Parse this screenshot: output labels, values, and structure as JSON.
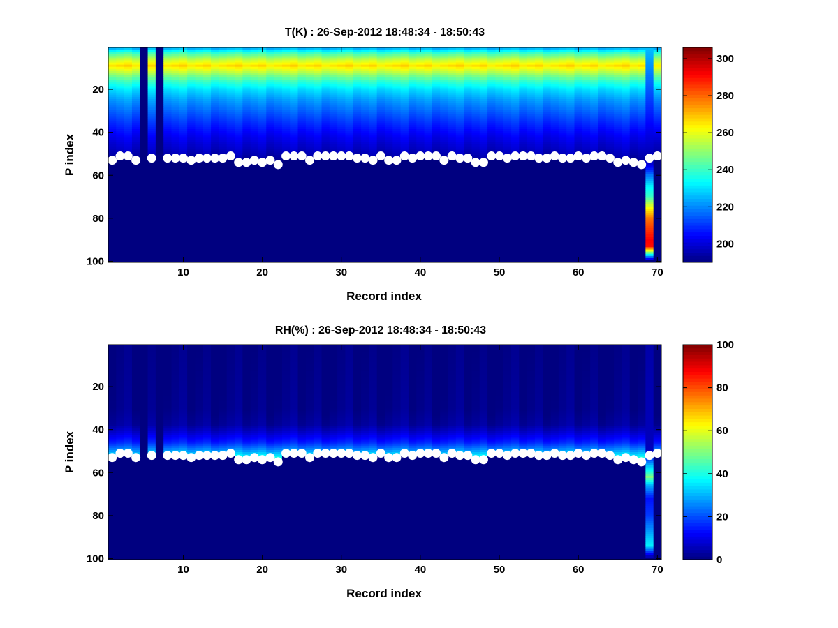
{
  "chart_data": [
    {
      "type": "heatmap",
      "title": "T(K) : 26-Sep-2012 18:48:34 - 18:50:43",
      "xlabel": "Record index",
      "ylabel": "P index",
      "xlim": [
        0.5,
        70.5
      ],
      "ylim": [
        0.5,
        100.5
      ],
      "y_reversed": true,
      "xticks": [
        10,
        20,
        30,
        40,
        50,
        60,
        70
      ],
      "yticks": [
        20,
        40,
        60,
        80,
        100
      ],
      "colormap": "jet",
      "clim": [
        190,
        306
      ],
      "colorbar_ticks": [
        200,
        220,
        240,
        260,
        280,
        300
      ],
      "field": {
        "description": "temperature in K versus P index",
        "profile_p": [
          1,
          3,
          6,
          9,
          12,
          16,
          20,
          25,
          30,
          35,
          40,
          45,
          50,
          53
        ],
        "profile_values": [
          226,
          240,
          255,
          266,
          255,
          240,
          230,
          222,
          216,
          210,
          205,
          200,
          196,
          193
        ],
        "below_marker_value": 190,
        "empty_columns": [
          5,
          7
        ],
        "empty_value": 190,
        "anomaly_column": 69,
        "anomaly_profile_p": [
          1,
          50,
          55,
          60,
          65,
          70,
          75,
          80,
          85,
          90,
          93,
          100
        ],
        "anomaly_profile_values": [
          226,
          196,
          200,
          218,
          232,
          240,
          262,
          278,
          285,
          292,
          290,
          190
        ]
      },
      "markers": {
        "x": [
          1,
          2,
          3,
          4,
          6,
          8,
          9,
          10,
          11,
          12,
          13,
          14,
          15,
          16,
          17,
          18,
          19,
          20,
          21,
          22,
          23,
          24,
          25,
          26,
          27,
          28,
          29,
          30,
          31,
          32,
          33,
          34,
          35,
          36,
          37,
          38,
          39,
          40,
          41,
          42,
          43,
          44,
          45,
          46,
          47,
          48,
          49,
          50,
          51,
          52,
          53,
          54,
          55,
          56,
          57,
          58,
          59,
          60,
          61,
          62,
          63,
          64,
          65,
          66,
          67,
          68,
          69,
          70
        ],
        "y": [
          53,
          51,
          51,
          53,
          52,
          52,
          52,
          52,
          53,
          52,
          52,
          52,
          52,
          51,
          54,
          54,
          53,
          54,
          53,
          55,
          51,
          51,
          51,
          53,
          51,
          51,
          51,
          51,
          51,
          52,
          52,
          53,
          51,
          53,
          53,
          51,
          52,
          51,
          51,
          51,
          53,
          51,
          52,
          52,
          54,
          54,
          51,
          51,
          52,
          51,
          51,
          51,
          52,
          52,
          51,
          52,
          52,
          51,
          52,
          51,
          51,
          52,
          54,
          53,
          54,
          55,
          52,
          51
        ]
      }
    },
    {
      "type": "heatmap",
      "title": "RH(%) : 26-Sep-2012 18:48:34 - 18:50:43",
      "xlabel": "Record index",
      "ylabel": "P index",
      "xlim": [
        0.5,
        70.5
      ],
      "ylim": [
        0.5,
        100.5
      ],
      "y_reversed": true,
      "xticks": [
        10,
        20,
        30,
        40,
        50,
        60,
        70
      ],
      "yticks": [
        20,
        40,
        60,
        80,
        100
      ],
      "colormap": "jet",
      "clim": [
        0,
        100
      ],
      "colorbar_ticks": [
        0,
        20,
        40,
        60,
        80,
        100
      ],
      "field": {
        "description": "relative humidity in % versus P index",
        "profile_p": [
          1,
          30,
          38,
          42,
          46,
          49,
          52,
          54
        ],
        "profile_values": [
          0,
          1,
          3,
          9,
          16,
          25,
          35,
          45
        ],
        "below_marker_value": 0,
        "empty_columns": [
          5,
          7
        ],
        "empty_value": 0,
        "anomaly_column": 69,
        "anomaly_profile_p": [
          1,
          50,
          56,
          60,
          62,
          66,
          72,
          80,
          86,
          92,
          94,
          100
        ],
        "anomaly_profile_values": [
          4,
          6,
          28,
          42,
          50,
          30,
          14,
          18,
          26,
          34,
          36,
          0
        ]
      },
      "markers": {
        "x": [
          1,
          2,
          3,
          4,
          6,
          8,
          9,
          10,
          11,
          12,
          13,
          14,
          15,
          16,
          17,
          18,
          19,
          20,
          21,
          22,
          23,
          24,
          25,
          26,
          27,
          28,
          29,
          30,
          31,
          32,
          33,
          34,
          35,
          36,
          37,
          38,
          39,
          40,
          41,
          42,
          43,
          44,
          45,
          46,
          47,
          48,
          49,
          50,
          51,
          52,
          53,
          54,
          55,
          56,
          57,
          58,
          59,
          60,
          61,
          62,
          63,
          64,
          65,
          66,
          67,
          68,
          69,
          70
        ],
        "y": [
          53,
          51,
          51,
          53,
          52,
          52,
          52,
          52,
          53,
          52,
          52,
          52,
          52,
          51,
          54,
          54,
          53,
          54,
          53,
          55,
          51,
          51,
          51,
          53,
          51,
          51,
          51,
          51,
          51,
          52,
          52,
          53,
          51,
          53,
          53,
          51,
          52,
          51,
          51,
          51,
          53,
          51,
          52,
          52,
          54,
          54,
          51,
          51,
          52,
          51,
          51,
          51,
          52,
          52,
          51,
          52,
          52,
          51,
          52,
          51,
          51,
          52,
          54,
          53,
          54,
          55,
          52,
          51
        ]
      }
    }
  ]
}
